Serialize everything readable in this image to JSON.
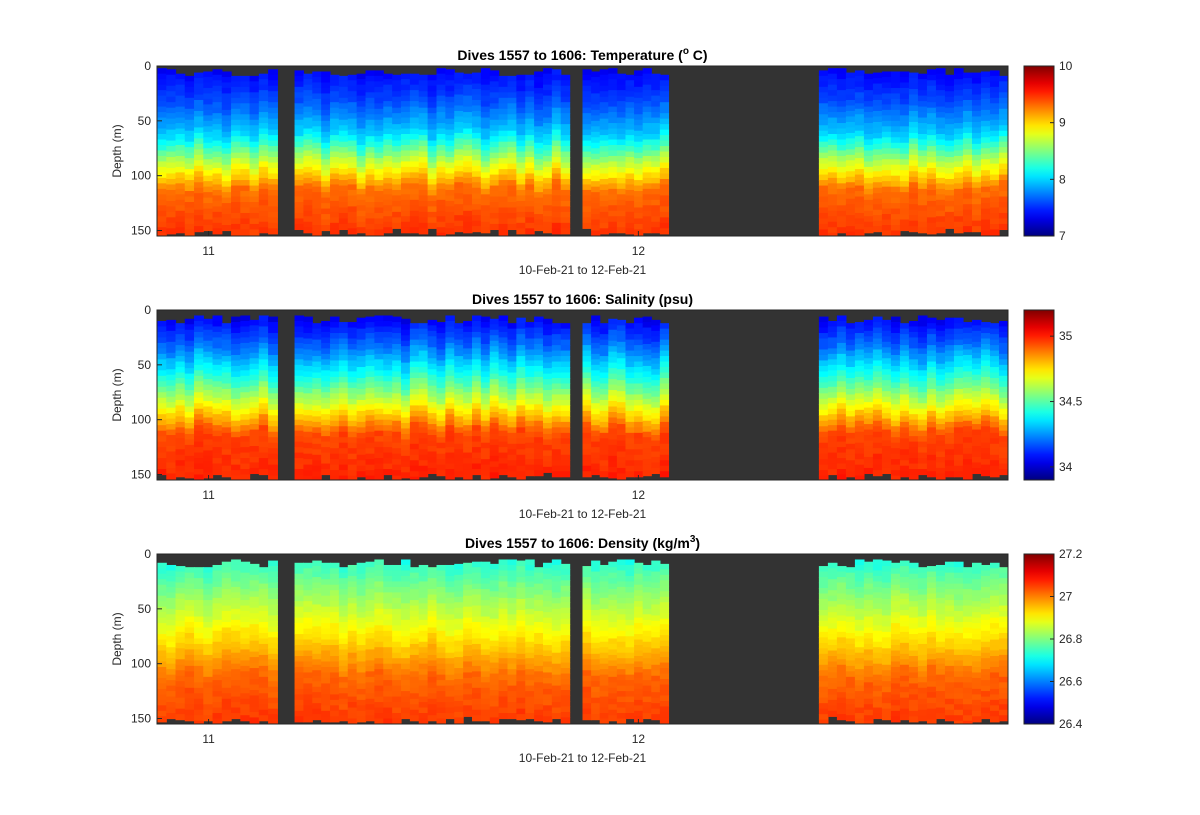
{
  "chart_data": [
    {
      "type": "heatmap",
      "title": "Dives 1557 to 1606: Temperature (",
      "title_sup": "o",
      "title_end": " C)",
      "ylabel": "Depth (m)",
      "xlabel": "10-Feb-21 to 12-Feb-21",
      "x_ticks": [
        {
          "value": 11,
          "label": "11"
        },
        {
          "value": 12,
          "label": "12"
        }
      ],
      "y_ticks": [
        0,
        50,
        100,
        150
      ],
      "ylim": [
        0,
        155
      ],
      "colorbar": {
        "range": [
          7,
          10
        ],
        "ticks": [
          "7",
          "8",
          "9",
          "10"
        ],
        "tick_values": [
          7,
          8,
          9,
          10
        ],
        "colormap": "jet"
      },
      "profile_breaks": [
        {
          "depth": 0,
          "value": 7.35
        },
        {
          "depth": 30,
          "value": 7.6
        },
        {
          "depth": 60,
          "value": 8.0
        },
        {
          "depth": 85,
          "value": 8.7
        },
        {
          "depth": 110,
          "value": 9.3
        },
        {
          "depth": 155,
          "value": 9.5
        }
      ]
    },
    {
      "type": "heatmap",
      "title": "Dives 1557 to 1606: Salinity (psu)",
      "title_sup": "",
      "title_end": "",
      "ylabel": "Depth (m)",
      "xlabel": "10-Feb-21 to 12-Feb-21",
      "x_ticks": [
        {
          "value": 11,
          "label": "11"
        },
        {
          "value": 12,
          "label": "12"
        }
      ],
      "y_ticks": [
        0,
        50,
        100,
        150
      ],
      "ylim": [
        0,
        155
      ],
      "colorbar": {
        "range": [
          33.9,
          35.2
        ],
        "ticks": [
          "34",
          "34.5",
          "35"
        ],
        "tick_values": [
          34,
          34.5,
          35
        ],
        "colormap": "jet"
      },
      "profile_breaks": [
        {
          "depth": 0,
          "value": 34.02
        },
        {
          "depth": 30,
          "value": 34.2
        },
        {
          "depth": 60,
          "value": 34.45
        },
        {
          "depth": 85,
          "value": 34.7
        },
        {
          "depth": 110,
          "value": 34.95
        },
        {
          "depth": 155,
          "value": 35.0
        }
      ]
    },
    {
      "type": "heatmap",
      "title": "Dives 1557 to 1606: Density (kg/m",
      "title_sup": "3",
      "title_end": ")",
      "ylabel": "Depth (m)",
      "xlabel": "10-Feb-21 to 12-Feb-21",
      "x_ticks": [
        {
          "value": 11,
          "label": "11"
        },
        {
          "value": 12,
          "label": "12"
        }
      ],
      "y_ticks": [
        0,
        50,
        100,
        150
      ],
      "ylim": [
        0,
        155
      ],
      "colorbar": {
        "range": [
          26.4,
          27.2
        ],
        "ticks": [
          "26.4",
          "26.6",
          "26.8",
          "27",
          "27.2"
        ],
        "tick_values": [
          26.4,
          26.6,
          26.8,
          27,
          27.2
        ],
        "colormap": "jet"
      },
      "profile_breaks": [
        {
          "depth": 0,
          "value": 26.72
        },
        {
          "depth": 30,
          "value": 26.8
        },
        {
          "depth": 60,
          "value": 26.88
        },
        {
          "depth": 85,
          "value": 26.95
        },
        {
          "depth": 110,
          "value": 27.02
        },
        {
          "depth": 155,
          "value": 27.06
        }
      ]
    }
  ],
  "time_axis": {
    "start_day": 10.88,
    "end_day": 12.86
  },
  "data_segments": [
    [
      10.88,
      11.16
    ],
    [
      11.2,
      11.84
    ],
    [
      11.87,
      12.07
    ],
    [
      12.42,
      12.86
    ]
  ],
  "colors": {
    "no_data": "#333333",
    "figure_bg": "#ffffff",
    "axis": "#262626"
  }
}
